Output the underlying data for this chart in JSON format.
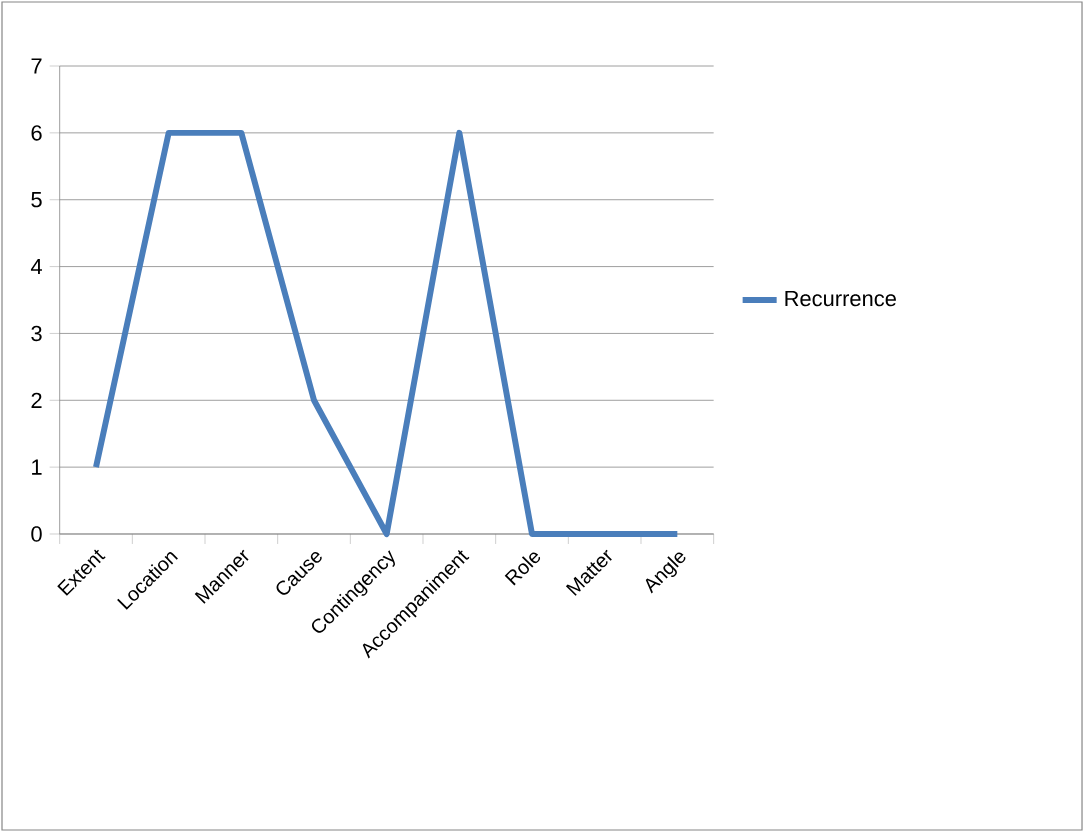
{
  "chart_data": {
    "type": "line",
    "categories": [
      "Extent",
      "Location",
      "Manner",
      "Cause",
      "Contingency",
      "Accompaniment",
      "Role",
      "Matter",
      "Angle"
    ],
    "series": [
      {
        "name": "Recurrence",
        "color": "#4a7ebb",
        "values": [
          1,
          6,
          6,
          2,
          0,
          6,
          0,
          0,
          0
        ]
      }
    ],
    "ylim": [
      0,
      7
    ],
    "yticks": [
      0,
      1,
      2,
      3,
      4,
      5,
      6,
      7
    ],
    "grid": "y",
    "legend": "right",
    "marker": "none",
    "line_style": "solid"
  }
}
